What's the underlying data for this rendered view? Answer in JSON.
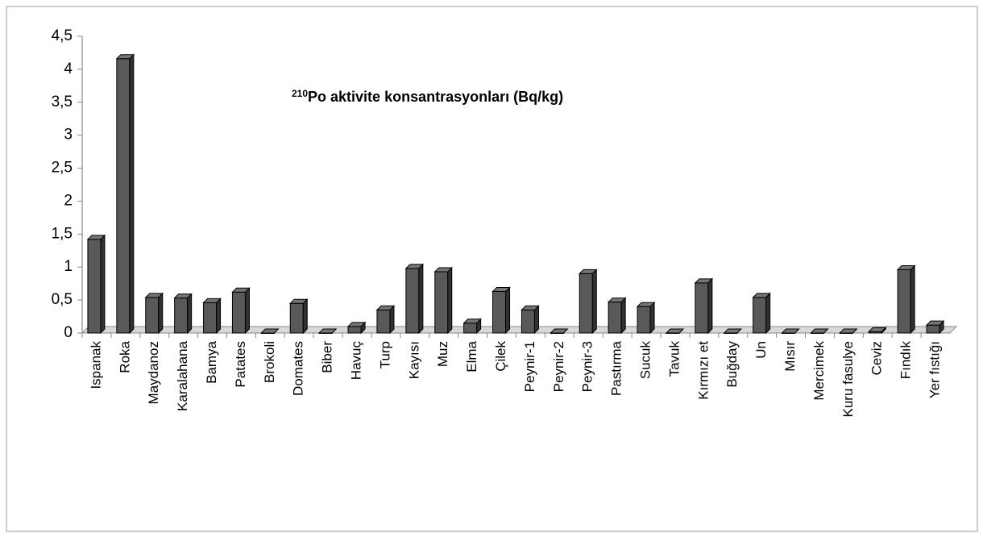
{
  "chart_data": {
    "type": "bar",
    "title_superscript": "210",
    "title": "Po aktivite konsantrasyonları (Bq/kg)",
    "categories": [
      "Ispanak",
      "Roka",
      "Maydanoz",
      "Karalahana",
      "Bamya",
      "Patates",
      "Brokoli",
      "Domates",
      "Biber",
      "Havuç",
      "Turp",
      "Kayısı",
      "Muz",
      "Elma",
      "Çilek",
      "Peynir-1",
      "Peynir-2",
      "Peynir-3",
      "Pastırma",
      "Sucuk",
      "Tavuk",
      "Kırmızı et",
      "Buğday",
      "Un",
      "Mısır",
      "Mercimek",
      "Kuru fasulye",
      "Ceviz",
      "Fındık",
      "Yer fıstığı"
    ],
    "values": [
      1.42,
      4.16,
      0.54,
      0.53,
      0.46,
      0.62,
      0,
      0.45,
      0,
      0.1,
      0.35,
      0.98,
      0.93,
      0.15,
      0.63,
      0.35,
      0,
      0.9,
      0.47,
      0.4,
      0,
      0.76,
      0,
      0.54,
      0,
      0,
      0,
      0.02,
      0.96,
      0.12
    ],
    "color": "#595959",
    "ylim": [
      0,
      4.5
    ],
    "yticks": [
      0,
      {
        "value": 0.5,
        "label": "0,5"
      },
      1,
      {
        "value": 1.5,
        "label": "1,5"
      },
      2,
      {
        "value": 2.5,
        "label": "2,5"
      },
      3,
      {
        "value": 3.5,
        "label": "3,5"
      },
      4,
      {
        "value": 4.5,
        "label": "4,5"
      }
    ],
    "grid": false
  }
}
